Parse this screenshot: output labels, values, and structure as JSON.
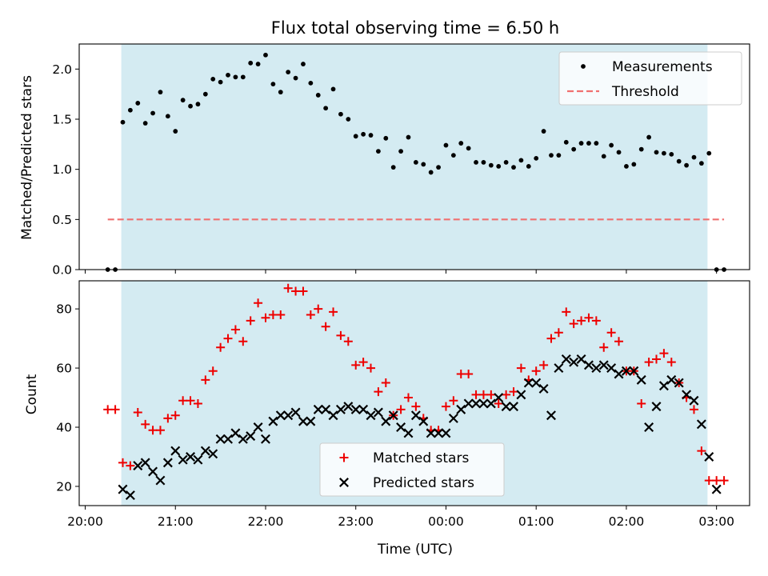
{
  "chart_data": [
    {
      "type": "scatter",
      "title": "Flux total observing time = 6.50 h",
      "xlabel": "",
      "ylabel": "Matched/Predicted stars",
      "xlim": [
        "19:56",
        "03:22"
      ],
      "ylim": [
        0,
        2.25
      ],
      "yticks": [
        "0.0",
        "0.5",
        "1.0",
        "1.5",
        "2.0"
      ],
      "shaded_interval": [
        "20:24",
        "02:54"
      ],
      "shade_color": "#d4ebf2",
      "legend_position": "top-right",
      "series": [
        {
          "name": "Measurements",
          "marker": "dot",
          "color": "#000000",
          "points": [
            [
              "20:15",
              0.0
            ],
            [
              "20:20",
              0.0
            ],
            [
              "20:25",
              1.47
            ],
            [
              "20:30",
              1.59
            ],
            [
              "20:35",
              1.66
            ],
            [
              "20:40",
              1.46
            ],
            [
              "20:45",
              1.56
            ],
            [
              "20:50",
              1.77
            ],
            [
              "20:55",
              1.53
            ],
            [
              "21:00",
              1.38
            ],
            [
              "21:05",
              1.69
            ],
            [
              "21:10",
              1.63
            ],
            [
              "21:15",
              1.65
            ],
            [
              "21:20",
              1.75
            ],
            [
              "21:25",
              1.9
            ],
            [
              "21:30",
              1.87
            ],
            [
              "21:35",
              1.94
            ],
            [
              "21:40",
              1.92
            ],
            [
              "21:45",
              1.92
            ],
            [
              "21:50",
              2.06
            ],
            [
              "21:55",
              2.05
            ],
            [
              "22:00",
              2.14
            ],
            [
              "22:05",
              1.85
            ],
            [
              "22:10",
              1.77
            ],
            [
              "22:15",
              1.97
            ],
            [
              "22:20",
              1.91
            ],
            [
              "22:25",
              2.05
            ],
            [
              "22:30",
              1.86
            ],
            [
              "22:35",
              1.74
            ],
            [
              "22:40",
              1.61
            ],
            [
              "22:45",
              1.8
            ],
            [
              "22:50",
              1.55
            ],
            [
              "22:55",
              1.5
            ],
            [
              "23:00",
              1.33
            ],
            [
              "23:05",
              1.35
            ],
            [
              "23:10",
              1.34
            ],
            [
              "23:15",
              1.18
            ],
            [
              "23:20",
              1.31
            ],
            [
              "23:25",
              1.02
            ],
            [
              "23:30",
              1.18
            ],
            [
              "23:35",
              1.32
            ],
            [
              "23:40",
              1.07
            ],
            [
              "23:45",
              1.05
            ],
            [
              "23:50",
              0.97
            ],
            [
              "23:55",
              1.02
            ],
            [
              "00:00",
              1.24
            ],
            [
              "00:05",
              1.14
            ],
            [
              "00:10",
              1.26
            ],
            [
              "00:15",
              1.21
            ],
            [
              "00:20",
              1.07
            ],
            [
              "00:25",
              1.07
            ],
            [
              "00:30",
              1.04
            ],
            [
              "00:35",
              1.03
            ],
            [
              "00:40",
              1.07
            ],
            [
              "00:45",
              1.02
            ],
            [
              "00:50",
              1.09
            ],
            [
              "00:55",
              1.03
            ],
            [
              "01:00",
              1.11
            ],
            [
              "01:05",
              1.38
            ],
            [
              "01:10",
              1.14
            ],
            [
              "01:15",
              1.14
            ],
            [
              "01:20",
              1.27
            ],
            [
              "01:25",
              1.2
            ],
            [
              "01:30",
              1.26
            ],
            [
              "01:35",
              1.26
            ],
            [
              "01:40",
              1.26
            ],
            [
              "01:45",
              1.13
            ],
            [
              "01:50",
              1.24
            ],
            [
              "01:55",
              1.17
            ],
            [
              "02:00",
              1.03
            ],
            [
              "02:05",
              1.05
            ],
            [
              "02:10",
              1.2
            ],
            [
              "02:15",
              1.32
            ],
            [
              "02:20",
              1.17
            ],
            [
              "02:25",
              1.16
            ],
            [
              "02:30",
              1.15
            ],
            [
              "02:35",
              1.08
            ],
            [
              "02:40",
              1.04
            ],
            [
              "02:45",
              1.12
            ],
            [
              "02:50",
              1.06
            ],
            [
              "02:55",
              1.16
            ],
            [
              "03:00",
              0.0
            ],
            [
              "03:05",
              0.0
            ]
          ]
        },
        {
          "name": "Threshold",
          "marker": "dashed-line",
          "color": "#f07070",
          "points": [
            [
              "20:15",
              0.5
            ],
            [
              "03:05",
              0.5
            ]
          ]
        }
      ]
    },
    {
      "type": "scatter",
      "title": "",
      "xlabel": "Time (UTC)",
      "ylabel": "Count",
      "xlim": [
        "19:56",
        "03:22"
      ],
      "ylim": [
        13.5,
        89.5
      ],
      "yticks": [
        "20",
        "40",
        "60",
        "80"
      ],
      "xticks": [
        "20:00",
        "21:00",
        "22:00",
        "23:00",
        "00:00",
        "01:00",
        "02:00",
        "03:00"
      ],
      "shaded_interval": [
        "20:24",
        "02:54"
      ],
      "shade_color": "#d4ebf2",
      "legend_position": "bottom-center",
      "series": [
        {
          "name": "Matched stars",
          "marker": "plus",
          "color": "#ee0000",
          "points": [
            [
              "20:15",
              46
            ],
            [
              "20:20",
              46
            ],
            [
              "20:25",
              28
            ],
            [
              "20:30",
              27
            ],
            [
              "20:35",
              45
            ],
            [
              "20:40",
              41
            ],
            [
              "20:45",
              39
            ],
            [
              "20:50",
              39
            ],
            [
              "20:55",
              43
            ],
            [
              "21:00",
              44
            ],
            [
              "21:05",
              49
            ],
            [
              "21:10",
              49
            ],
            [
              "21:15",
              48
            ],
            [
              "21:20",
              56
            ],
            [
              "21:25",
              59
            ],
            [
              "21:30",
              67
            ],
            [
              "21:35",
              70
            ],
            [
              "21:40",
              73
            ],
            [
              "21:45",
              69
            ],
            [
              "21:50",
              76
            ],
            [
              "21:55",
              82
            ],
            [
              "22:00",
              77
            ],
            [
              "22:05",
              78
            ],
            [
              "22:10",
              78
            ],
            [
              "22:15",
              87
            ],
            [
              "22:20",
              86
            ],
            [
              "22:25",
              86
            ],
            [
              "22:30",
              78
            ],
            [
              "22:35",
              80
            ],
            [
              "22:40",
              74
            ],
            [
              "22:45",
              79
            ],
            [
              "22:50",
              71
            ],
            [
              "22:55",
              69
            ],
            [
              "23:00",
              61
            ],
            [
              "23:05",
              62
            ],
            [
              "23:10",
              60
            ],
            [
              "23:15",
              52
            ],
            [
              "23:20",
              55
            ],
            [
              "23:25",
              44
            ],
            [
              "23:30",
              46
            ],
            [
              "23:35",
              50
            ],
            [
              "23:40",
              47
            ],
            [
              "23:45",
              43
            ],
            [
              "23:50",
              39
            ],
            [
              "23:55",
              39
            ],
            [
              "00:00",
              47
            ],
            [
              "00:05",
              49
            ],
            [
              "00:10",
              58
            ],
            [
              "00:15",
              58
            ],
            [
              "00:20",
              51
            ],
            [
              "00:25",
              51
            ],
            [
              "00:30",
              51
            ],
            [
              "00:35",
              48
            ],
            [
              "00:40",
              51
            ],
            [
              "00:45",
              52
            ],
            [
              "00:50",
              60
            ],
            [
              "00:55",
              56
            ],
            [
              "01:00",
              59
            ],
            [
              "01:05",
              61
            ],
            [
              "01:10",
              70
            ],
            [
              "01:15",
              72
            ],
            [
              "01:20",
              79
            ],
            [
              "01:25",
              75
            ],
            [
              "01:30",
              76
            ],
            [
              "01:35",
              77
            ],
            [
              "01:40",
              76
            ],
            [
              "01:45",
              67
            ],
            [
              "01:50",
              72
            ],
            [
              "01:55",
              69
            ],
            [
              "02:00",
              59
            ],
            [
              "02:05",
              59
            ],
            [
              "02:10",
              48
            ],
            [
              "02:15",
              62
            ],
            [
              "02:20",
              63
            ],
            [
              "02:25",
              65
            ],
            [
              "02:30",
              62
            ],
            [
              "02:35",
              55
            ],
            [
              "02:40",
              50
            ],
            [
              "02:45",
              46
            ],
            [
              "02:50",
              32
            ],
            [
              "02:55",
              22
            ],
            [
              "03:00",
              22
            ],
            [
              "03:05",
              22
            ]
          ]
        },
        {
          "name": "Predicted stars",
          "marker": "x",
          "color": "#000000",
          "points": [
            [
              "20:25",
              19
            ],
            [
              "20:30",
              17
            ],
            [
              "20:35",
              27
            ],
            [
              "20:40",
              28
            ],
            [
              "20:45",
              25
            ],
            [
              "20:50",
              22
            ],
            [
              "20:55",
              28
            ],
            [
              "21:00",
              32
            ],
            [
              "21:05",
              29
            ],
            [
              "21:10",
              30
            ],
            [
              "21:15",
              29
            ],
            [
              "21:20",
              32
            ],
            [
              "21:25",
              31
            ],
            [
              "21:30",
              36
            ],
            [
              "21:35",
              36
            ],
            [
              "21:40",
              38
            ],
            [
              "21:45",
              36
            ],
            [
              "21:50",
              37
            ],
            [
              "21:55",
              40
            ],
            [
              "22:00",
              36
            ],
            [
              "22:05",
              42
            ],
            [
              "22:10",
              44
            ],
            [
              "22:15",
              44
            ],
            [
              "22:20",
              45
            ],
            [
              "22:25",
              42
            ],
            [
              "22:30",
              42
            ],
            [
              "22:35",
              46
            ],
            [
              "22:40",
              46
            ],
            [
              "22:45",
              44
            ],
            [
              "22:50",
              46
            ],
            [
              "22:55",
              47
            ],
            [
              "23:00",
              46
            ],
            [
              "23:05",
              46
            ],
            [
              "23:10",
              44
            ],
            [
              "23:15",
              45
            ],
            [
              "23:20",
              42
            ],
            [
              "23:25",
              44
            ],
            [
              "23:30",
              40
            ],
            [
              "23:35",
              38
            ],
            [
              "23:40",
              44
            ],
            [
              "23:45",
              42
            ],
            [
              "23:50",
              38
            ],
            [
              "23:55",
              38
            ],
            [
              "00:00",
              38
            ],
            [
              "00:05",
              43
            ],
            [
              "00:10",
              46
            ],
            [
              "00:15",
              48
            ],
            [
              "00:20",
              48
            ],
            [
              "00:25",
              48
            ],
            [
              "00:30",
              48
            ],
            [
              "00:35",
              50
            ],
            [
              "00:40",
              47
            ],
            [
              "00:45",
              47
            ],
            [
              "00:50",
              51
            ],
            [
              "00:55",
              55
            ],
            [
              "01:00",
              55
            ],
            [
              "01:05",
              53
            ],
            [
              "01:10",
              44
            ],
            [
              "01:15",
              60
            ],
            [
              "01:20",
              63
            ],
            [
              "01:25",
              62
            ],
            [
              "01:30",
              63
            ],
            [
              "01:35",
              61
            ],
            [
              "01:40",
              60
            ],
            [
              "01:45",
              61
            ],
            [
              "01:50",
              60
            ],
            [
              "01:55",
              58
            ],
            [
              "02:00",
              59
            ],
            [
              "02:05",
              59
            ],
            [
              "02:10",
              56
            ],
            [
              "02:15",
              40
            ],
            [
              "02:20",
              47
            ],
            [
              "02:25",
              54
            ],
            [
              "02:30",
              56
            ],
            [
              "02:35",
              55
            ],
            [
              "02:40",
              51
            ],
            [
              "02:45",
              49
            ],
            [
              "02:50",
              41
            ],
            [
              "02:55",
              30
            ],
            [
              "03:00",
              19
            ]
          ]
        }
      ]
    }
  ]
}
